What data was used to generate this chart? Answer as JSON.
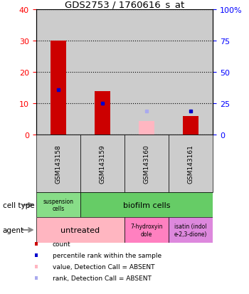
{
  "title": "GDS2753 / 1760616_s_at",
  "samples": [
    "GSM143158",
    "GSM143159",
    "GSM143160",
    "GSM143161"
  ],
  "count_values": [
    30,
    14,
    null,
    6
  ],
  "count_absent": [
    null,
    null,
    4.5,
    null
  ],
  "percentile_values": [
    14.5,
    10,
    null,
    7.5
  ],
  "percentile_absent": [
    null,
    null,
    7.5,
    null
  ],
  "ylim_left": [
    0,
    40
  ],
  "ylim_right": [
    0,
    100
  ],
  "yticks_left": [
    0,
    10,
    20,
    30,
    40
  ],
  "yticks_right": [
    0,
    25,
    50,
    75,
    100
  ],
  "ytick_labels_right": [
    "0",
    "25",
    "50",
    "75",
    "100%"
  ],
  "bar_color": "#CC0000",
  "bar_absent_color": "#FFB6C1",
  "dot_color": "#0000CC",
  "dot_absent_color": "#AAAAEE",
  "sample_bg_color": "#CCCCCC",
  "cell_type_label": "cell type",
  "agent_label": "agent",
  "suspension_color": "#88DD88",
  "biofilm_color": "#66CC66",
  "untreated_color": "#FFB6C1",
  "hydroxyin_color": "#FF80C0",
  "isatin_color": "#DD88DD",
  "legend_items": [
    {
      "color": "#CC0000",
      "label": "count"
    },
    {
      "color": "#0000CC",
      "label": "percentile rank within the sample"
    },
    {
      "color": "#FFB6C1",
      "label": "value, Detection Call = ABSENT"
    },
    {
      "color": "#AAAAEE",
      "label": "rank, Detection Call = ABSENT"
    }
  ],
  "bar_width": 0.35
}
